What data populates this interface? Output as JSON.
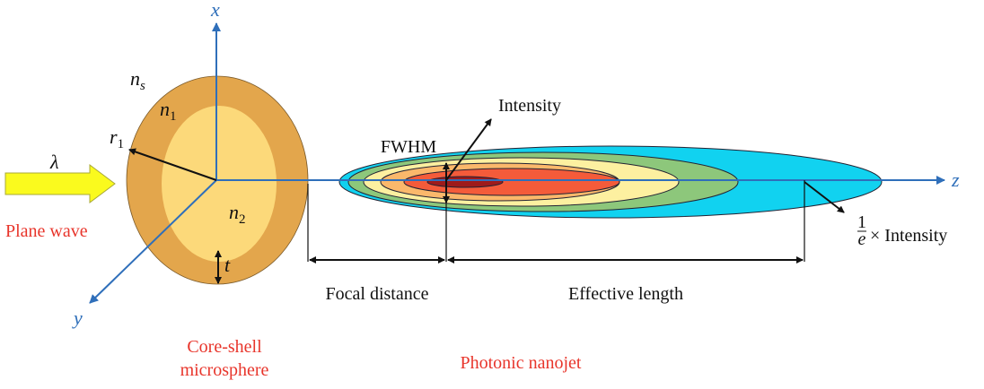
{
  "labels": {
    "axis_x": "x",
    "axis_y": "y",
    "axis_z": "z",
    "n_s": "n",
    "n_s_sub": "s",
    "n_1": "n",
    "n_1_sub": "1",
    "n_2": "n",
    "n_2_sub": "2",
    "r_1": "r",
    "r_1_sub": "1",
    "t": "t",
    "lambda": "λ",
    "plane_wave": "Plane wave",
    "core_shell_line1": "Core-shell",
    "core_shell_line2": "microsphere",
    "photonic_nanojet": "Photonic nanojet",
    "fwhm": "FWHM",
    "intensity": "Intensity",
    "inv_e_num": "1",
    "inv_e_den": "e",
    "inv_e_text": "× Intensity",
    "focal_distance": "Focal distance",
    "effective_length": "Effective length"
  },
  "colors": {
    "axis": "#2f6fba",
    "shell": "#e3a64c",
    "core": "#fcd97a",
    "arrow": "#fafa1e",
    "red_text": "#e8352b",
    "jet": [
      "#11d2f0",
      "#8dc77b",
      "#fdf0a0",
      "#fbb86b",
      "#f45b3a",
      "#9e1b1b"
    ]
  }
}
